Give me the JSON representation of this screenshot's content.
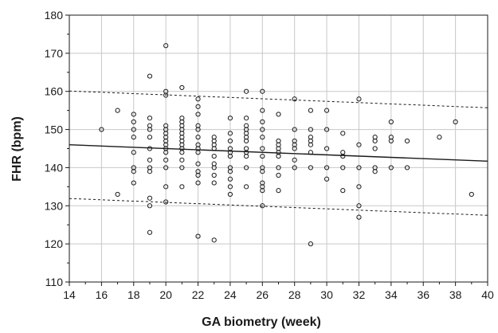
{
  "chart_data": {
    "type": "scatter",
    "title": "",
    "xlabel": "GA biometry (week)",
    "ylabel": "FHR (bpm)",
    "xlim": [
      14,
      40
    ],
    "ylim": [
      110,
      180
    ],
    "xticks": [
      14,
      16,
      18,
      20,
      22,
      24,
      26,
      28,
      30,
      32,
      34,
      36,
      38,
      40
    ],
    "yticks": [
      110,
      120,
      130,
      140,
      150,
      160,
      170,
      180
    ],
    "grid": true,
    "legend": "none",
    "colors": {
      "marker": "#1a1a1a",
      "grid": "#c8c8c8",
      "line": "#1a1a1a"
    },
    "points": [
      {
        "x": 16,
        "y": 150
      },
      {
        "x": 17,
        "y": 155
      },
      {
        "x": 17,
        "y": 133
      },
      {
        "x": 18,
        "y": 154
      },
      {
        "x": 18,
        "y": 152
      },
      {
        "x": 18,
        "y": 150
      },
      {
        "x": 18,
        "y": 148
      },
      {
        "x": 18,
        "y": 144
      },
      {
        "x": 18,
        "y": 140
      },
      {
        "x": 18,
        "y": 139
      },
      {
        "x": 18,
        "y": 136
      },
      {
        "x": 19,
        "y": 164
      },
      {
        "x": 19,
        "y": 153
      },
      {
        "x": 19,
        "y": 151
      },
      {
        "x": 19,
        "y": 150
      },
      {
        "x": 19,
        "y": 148
      },
      {
        "x": 19,
        "y": 145
      },
      {
        "x": 19,
        "y": 142
      },
      {
        "x": 19,
        "y": 140
      },
      {
        "x": 19,
        "y": 139
      },
      {
        "x": 19,
        "y": 132
      },
      {
        "x": 19,
        "y": 130
      },
      {
        "x": 19,
        "y": 123
      },
      {
        "x": 20,
        "y": 172
      },
      {
        "x": 20,
        "y": 160
      },
      {
        "x": 20,
        "y": 159
      },
      {
        "x": 20,
        "y": 151
      },
      {
        "x": 20,
        "y": 150
      },
      {
        "x": 20,
        "y": 149
      },
      {
        "x": 20,
        "y": 148
      },
      {
        "x": 20,
        "y": 147
      },
      {
        "x": 20,
        "y": 146
      },
      {
        "x": 20,
        "y": 145
      },
      {
        "x": 20,
        "y": 144
      },
      {
        "x": 20,
        "y": 142
      },
      {
        "x": 20,
        "y": 140
      },
      {
        "x": 20,
        "y": 135
      },
      {
        "x": 20,
        "y": 131
      },
      {
        "x": 21,
        "y": 161
      },
      {
        "x": 21,
        "y": 153
      },
      {
        "x": 21,
        "y": 152
      },
      {
        "x": 21,
        "y": 151
      },
      {
        "x": 21,
        "y": 150
      },
      {
        "x": 21,
        "y": 149
      },
      {
        "x": 21,
        "y": 148
      },
      {
        "x": 21,
        "y": 147
      },
      {
        "x": 21,
        "y": 146
      },
      {
        "x": 21,
        "y": 145
      },
      {
        "x": 21,
        "y": 144
      },
      {
        "x": 21,
        "y": 142
      },
      {
        "x": 21,
        "y": 140
      },
      {
        "x": 21,
        "y": 135
      },
      {
        "x": 22,
        "y": 158
      },
      {
        "x": 22,
        "y": 156
      },
      {
        "x": 22,
        "y": 154
      },
      {
        "x": 22,
        "y": 151
      },
      {
        "x": 22,
        "y": 150
      },
      {
        "x": 22,
        "y": 148
      },
      {
        "x": 22,
        "y": 146
      },
      {
        "x": 22,
        "y": 145
      },
      {
        "x": 22,
        "y": 144
      },
      {
        "x": 22,
        "y": 141
      },
      {
        "x": 22,
        "y": 139
      },
      {
        "x": 22,
        "y": 138
      },
      {
        "x": 22,
        "y": 136
      },
      {
        "x": 22,
        "y": 122
      },
      {
        "x": 23,
        "y": 148
      },
      {
        "x": 23,
        "y": 147
      },
      {
        "x": 23,
        "y": 146
      },
      {
        "x": 23,
        "y": 145
      },
      {
        "x": 23,
        "y": 143
      },
      {
        "x": 23,
        "y": 141
      },
      {
        "x": 23,
        "y": 140
      },
      {
        "x": 23,
        "y": 138
      },
      {
        "x": 23,
        "y": 136
      },
      {
        "x": 23,
        "y": 121
      },
      {
        "x": 24,
        "y": 153
      },
      {
        "x": 24,
        "y": 149
      },
      {
        "x": 24,
        "y": 147
      },
      {
        "x": 24,
        "y": 145
      },
      {
        "x": 24,
        "y": 144
      },
      {
        "x": 24,
        "y": 143
      },
      {
        "x": 24,
        "y": 140
      },
      {
        "x": 24,
        "y": 139
      },
      {
        "x": 24,
        "y": 137
      },
      {
        "x": 24,
        "y": 135
      },
      {
        "x": 24,
        "y": 133
      },
      {
        "x": 25,
        "y": 160
      },
      {
        "x": 25,
        "y": 153
      },
      {
        "x": 25,
        "y": 151
      },
      {
        "x": 25,
        "y": 150
      },
      {
        "x": 25,
        "y": 149
      },
      {
        "x": 25,
        "y": 148
      },
      {
        "x": 25,
        "y": 147
      },
      {
        "x": 25,
        "y": 145
      },
      {
        "x": 25,
        "y": 144
      },
      {
        "x": 25,
        "y": 143
      },
      {
        "x": 25,
        "y": 140
      },
      {
        "x": 25,
        "y": 135
      },
      {
        "x": 26,
        "y": 160
      },
      {
        "x": 26,
        "y": 155
      },
      {
        "x": 26,
        "y": 152
      },
      {
        "x": 26,
        "y": 150
      },
      {
        "x": 26,
        "y": 148
      },
      {
        "x": 26,
        "y": 145
      },
      {
        "x": 26,
        "y": 143
      },
      {
        "x": 26,
        "y": 140
      },
      {
        "x": 26,
        "y": 139
      },
      {
        "x": 26,
        "y": 136
      },
      {
        "x": 26,
        "y": 135
      },
      {
        "x": 26,
        "y": 134
      },
      {
        "x": 26,
        "y": 130
      },
      {
        "x": 27,
        "y": 154
      },
      {
        "x": 27,
        "y": 147
      },
      {
        "x": 27,
        "y": 146
      },
      {
        "x": 27,
        "y": 145
      },
      {
        "x": 27,
        "y": 144
      },
      {
        "x": 27,
        "y": 143
      },
      {
        "x": 27,
        "y": 140
      },
      {
        "x": 27,
        "y": 138
      },
      {
        "x": 27,
        "y": 134
      },
      {
        "x": 28,
        "y": 158
      },
      {
        "x": 28,
        "y": 150
      },
      {
        "x": 28,
        "y": 147
      },
      {
        "x": 28,
        "y": 146
      },
      {
        "x": 28,
        "y": 145
      },
      {
        "x": 28,
        "y": 142
      },
      {
        "x": 28,
        "y": 140
      },
      {
        "x": 29,
        "y": 155
      },
      {
        "x": 29,
        "y": 150
      },
      {
        "x": 29,
        "y": 148
      },
      {
        "x": 29,
        "y": 147
      },
      {
        "x": 29,
        "y": 146
      },
      {
        "x": 29,
        "y": 144
      },
      {
        "x": 29,
        "y": 140
      },
      {
        "x": 29,
        "y": 120
      },
      {
        "x": 30,
        "y": 155
      },
      {
        "x": 30,
        "y": 150
      },
      {
        "x": 30,
        "y": 145
      },
      {
        "x": 30,
        "y": 140
      },
      {
        "x": 30,
        "y": 137
      },
      {
        "x": 31,
        "y": 149
      },
      {
        "x": 31,
        "y": 144
      },
      {
        "x": 31,
        "y": 143
      },
      {
        "x": 31,
        "y": 140
      },
      {
        "x": 31,
        "y": 134
      },
      {
        "x": 32,
        "y": 158
      },
      {
        "x": 32,
        "y": 146
      },
      {
        "x": 32,
        "y": 140
      },
      {
        "x": 32,
        "y": 135
      },
      {
        "x": 32,
        "y": 130
      },
      {
        "x": 32,
        "y": 127
      },
      {
        "x": 33,
        "y": 148
      },
      {
        "x": 33,
        "y": 147
      },
      {
        "x": 33,
        "y": 145
      },
      {
        "x": 33,
        "y": 140
      },
      {
        "x": 33,
        "y": 139
      },
      {
        "x": 34,
        "y": 152
      },
      {
        "x": 34,
        "y": 148
      },
      {
        "x": 34,
        "y": 147
      },
      {
        "x": 34,
        "y": 140
      },
      {
        "x": 35,
        "y": 147
      },
      {
        "x": 35,
        "y": 140
      },
      {
        "x": 37,
        "y": 148
      },
      {
        "x": 38,
        "y": 152
      },
      {
        "x": 39,
        "y": 133
      }
    ],
    "fit_line": {
      "x": [
        14,
        40
      ],
      "y": [
        146,
        141.7
      ]
    },
    "bounds": [
      {
        "x": [
          14,
          40
        ],
        "y": [
          160.1,
          155.7
        ]
      },
      {
        "x": [
          14,
          40
        ],
        "y": [
          131.9,
          127.5
        ]
      }
    ]
  }
}
